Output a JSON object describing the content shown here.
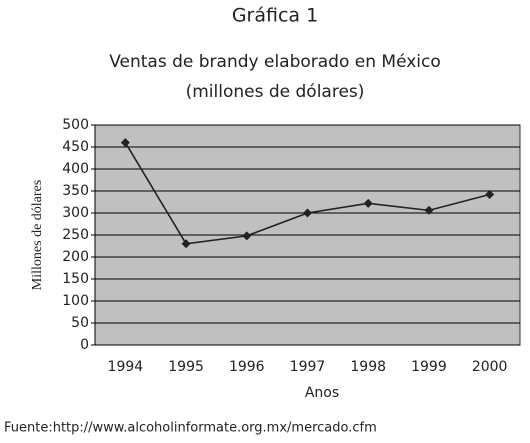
{
  "chart_data": {
    "type": "line",
    "heading": "Gráfica 1",
    "title": "Ventas de brandy elaborado en México",
    "subtitle": "(millones de dólares)",
    "y_label": "Millones de dólares",
    "x_label": "Anos",
    "source": "Fuente:http://www.alcoholinformate.org.mx/mercado.cfm",
    "categories": [
      "1994",
      "1995",
      "1996",
      "1997",
      "1998",
      "1999",
      "2000"
    ],
    "values": [
      460,
      230,
      248,
      300,
      322,
      306,
      342
    ],
    "color": "#222222",
    "background": "#c0c0c0",
    "ylim": [
      0,
      500
    ],
    "yticks": [
      0,
      50,
      100,
      150,
      200,
      250,
      300,
      350,
      400,
      450,
      500
    ],
    "grid": true
  }
}
